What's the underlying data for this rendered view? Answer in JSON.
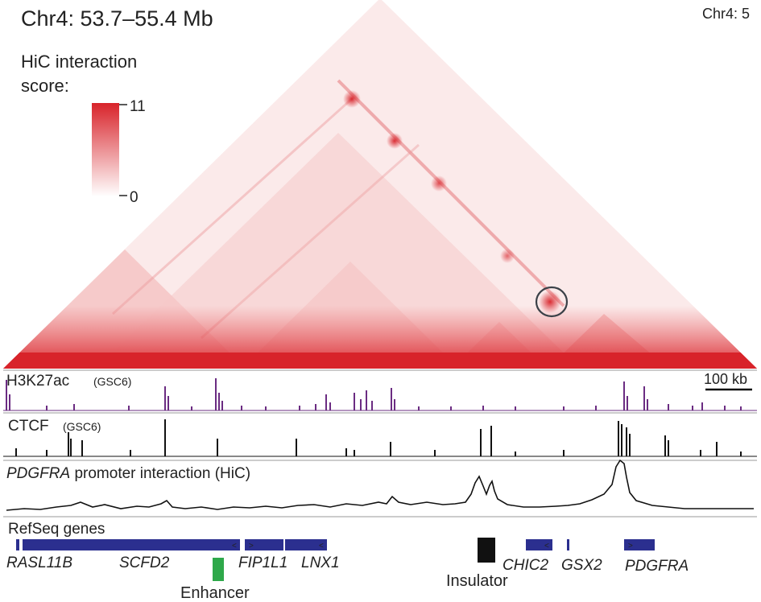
{
  "title": "Chr4: 53.7–55.4 Mb",
  "title_right": "Chr4: 5",
  "legend": {
    "label_line1": "HiC interaction",
    "label_line2": "score:",
    "max": "11",
    "min": "0",
    "color_max": "#d8232a",
    "color_min": "#ffffff"
  },
  "tracks": {
    "h3k27ac": {
      "label": "H3K27ac",
      "sample": "(GSC6)",
      "color": "#6b2c82"
    },
    "ctcf": {
      "label": "CTCF",
      "sample": "(GSC6)",
      "color": "#111111"
    },
    "promoter": {
      "gene": "PDGFRA",
      "label": " promoter interaction (HiC)"
    },
    "refseq": {
      "label": "RefSeq genes",
      "color": "#2b2f8f"
    }
  },
  "scale_bar": "100 kb",
  "genes": [
    {
      "name": "RASL11B"
    },
    {
      "name": "SCFD2"
    },
    {
      "name": "FIP1L1"
    },
    {
      "name": "LNX1"
    },
    {
      "name": "CHIC2"
    },
    {
      "name": "GSX2"
    },
    {
      "name": "PDGFRA"
    }
  ],
  "annotations": {
    "enhancer": {
      "label": "Enhancer",
      "color": "#2ea84a"
    },
    "insulator": {
      "label": "Insulator",
      "color": "#111111"
    }
  }
}
